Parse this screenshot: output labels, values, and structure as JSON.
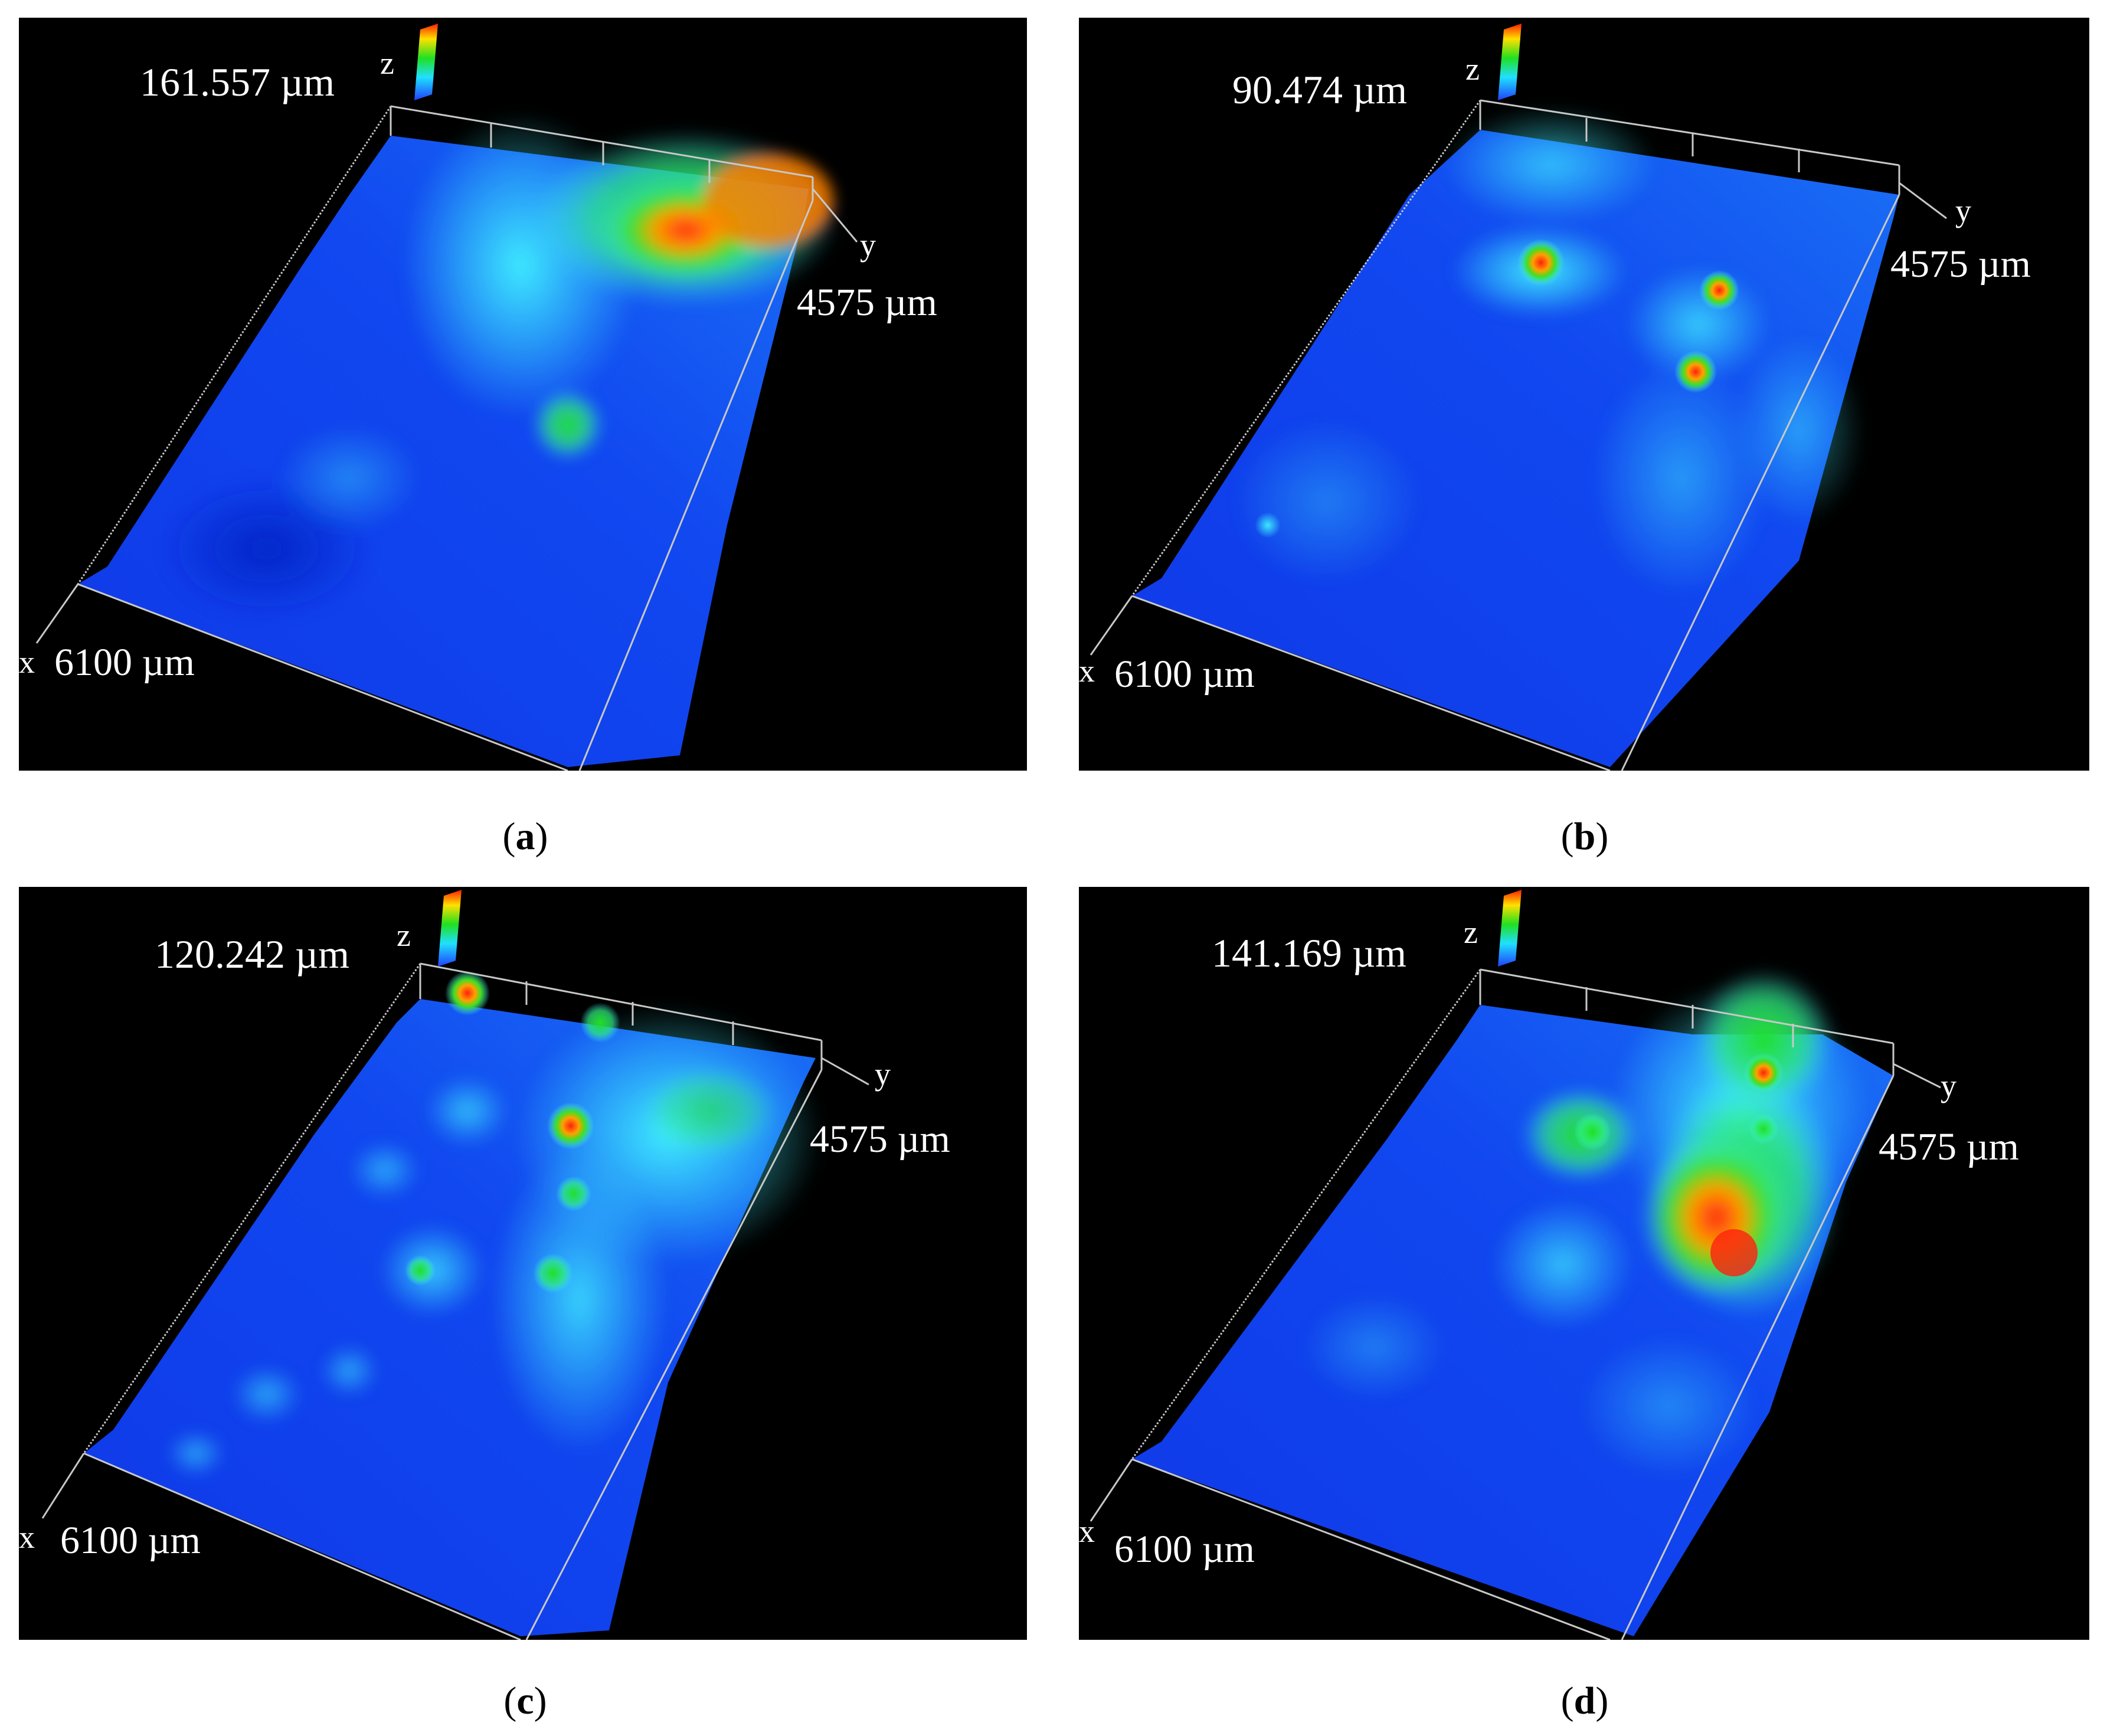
{
  "panels": [
    {
      "id": "a",
      "caption_letter": "a",
      "z_max": "161.557 µm",
      "x_extent": "6100 µm",
      "y_extent": "4575 µm",
      "axis_x": "x",
      "axis_y": "y",
      "axis_z": "z"
    },
    {
      "id": "b",
      "caption_letter": "b",
      "z_max": "90.474 µm",
      "x_extent": "6100 µm",
      "y_extent": "4575 µm",
      "axis_x": "x",
      "axis_y": "y",
      "axis_z": "z"
    },
    {
      "id": "c",
      "caption_letter": "c",
      "z_max": "120.242 µm",
      "x_extent": "6100 µm",
      "y_extent": "4575 µm",
      "axis_x": "x",
      "axis_y": "y",
      "axis_z": "z"
    },
    {
      "id": "d",
      "caption_letter": "d",
      "z_max": "141.169 µm",
      "x_extent": "6100 µm",
      "y_extent": "4575 µm",
      "axis_x": "x",
      "axis_y": "y",
      "axis_z": "z"
    }
  ],
  "colors": {
    "background": "#000000",
    "surface_low": "#1030e0",
    "surface_mid": "#20e0f0",
    "surface_high": "#10d010",
    "surface_peak": "#ff2000",
    "frame_lines": "#c8c8c8"
  }
}
